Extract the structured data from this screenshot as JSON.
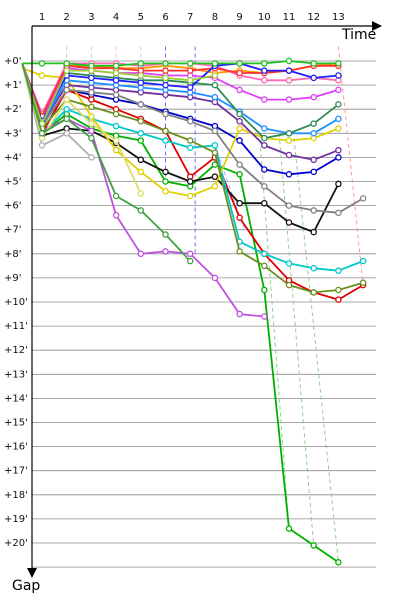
{
  "chart_data": {
    "type": "line",
    "xlabel": "Time",
    "ylabel": "Gap",
    "x_ticks": [
      "1",
      "2",
      "3",
      "4",
      "5",
      "6",
      "7",
      "8",
      "9",
      "10",
      "11",
      "12",
      "13"
    ],
    "y_ticks": [
      "+0'",
      "+1'",
      "+2'",
      "+3'",
      "+4'",
      "+5'",
      "+6'",
      "+7'",
      "+8'",
      "+9'",
      "+10'",
      "+11'",
      "+12'",
      "+13'",
      "+14'",
      "+15'",
      "+16'",
      "+17'",
      "+18'",
      "+19'",
      "+20'"
    ],
    "xlim": [
      0.2,
      14.2
    ],
    "ylim": [
      0,
      21
    ],
    "grid": true,
    "series": [
      {
        "color": "#00b000",
        "x": [
          0.2,
          1,
          2,
          3,
          4,
          5,
          6,
          7,
          8,
          9,
          10,
          11,
          12,
          13
        ],
        "y": [
          0.1,
          3.0,
          2.2,
          2.8,
          3.1,
          3.3,
          5.0,
          5.2,
          4.3,
          4.7,
          9.5,
          19.4,
          20.1,
          20.8
        ]
      },
      {
        "color": "#0000cc",
        "x": [
          0.2,
          1,
          2,
          3,
          4,
          5,
          6,
          7,
          8,
          9,
          10,
          11,
          12,
          13
        ],
        "y": [
          0.1,
          3.0,
          1.2,
          1.4,
          1.6,
          1.8,
          2.1,
          2.4,
          2.7,
          3.3,
          4.5,
          4.7,
          4.6,
          4.0
        ]
      },
      {
        "color": "#e00000",
        "x": [
          0.2,
          1,
          2,
          3,
          4,
          5,
          6,
          7,
          8,
          9,
          10,
          11,
          12,
          13,
          14
        ],
        "y": [
          0.1,
          3.0,
          1.2,
          1.6,
          2.0,
          2.4,
          2.9,
          4.8,
          4.0,
          6.5,
          8.0,
          9.1,
          9.6,
          9.9,
          9.3
        ]
      },
      {
        "color": "#111111",
        "x": [
          0.2,
          1,
          2,
          3,
          4,
          5,
          6,
          7,
          8,
          9,
          10,
          11,
          12,
          13
        ],
        "y": [
          0.1,
          3.1,
          2.8,
          2.9,
          3.4,
          4.1,
          4.6,
          5.0,
          4.8,
          5.9,
          5.9,
          6.7,
          7.1,
          5.1
        ]
      },
      {
        "color": "#00c8c8",
        "x": [
          0.2,
          1,
          2,
          3,
          4,
          5,
          6,
          7,
          8,
          9,
          10,
          11,
          12,
          13,
          14
        ],
        "y": [
          0.1,
          3.0,
          2.0,
          2.4,
          2.7,
          3.0,
          3.3,
          3.6,
          3.5,
          7.5,
          8.0,
          8.4,
          8.6,
          8.7,
          8.3
        ]
      },
      {
        "color": "#c050e0",
        "x": [
          0.2,
          1,
          2,
          3,
          4,
          5,
          6,
          7,
          8,
          9,
          10
        ],
        "y": [
          0.1,
          2.9,
          2.4,
          2.9,
          6.4,
          8.0,
          7.9,
          8.0,
          9.0,
          10.5,
          10.6
        ]
      },
      {
        "color": "#e0d000",
        "x": [
          0.2,
          1,
          2,
          3,
          4,
          5,
          6,
          7,
          8,
          9,
          10,
          11,
          12,
          13
        ],
        "y": [
          0.3,
          0.6,
          0.7,
          2.3,
          3.7,
          4.6,
          5.4,
          5.6,
          5.2,
          2.8,
          3.2,
          3.3,
          3.2,
          2.8
        ]
      },
      {
        "color": "#7030a0",
        "x": [
          0.2,
          1,
          2,
          3,
          4,
          5,
          6,
          7,
          8,
          9,
          10,
          11,
          12,
          13
        ],
        "y": [
          0.1,
          2.6,
          1.0,
          1.1,
          1.2,
          1.3,
          1.4,
          1.5,
          1.7,
          2.5,
          3.5,
          3.9,
          4.1,
          3.7
        ]
      },
      {
        "color": "#1e90ff",
        "x": [
          0.2,
          1,
          2,
          3,
          4,
          5,
          6,
          7,
          8,
          9,
          10,
          11,
          12,
          13
        ],
        "y": [
          0.1,
          2.6,
          0.8,
          0.9,
          1.0,
          1.1,
          1.2,
          1.3,
          1.5,
          2.1,
          2.8,
          3.0,
          3.0,
          2.4
        ]
      },
      {
        "color": "#2e8b57",
        "x": [
          0.2,
          1,
          2,
          3,
          4,
          5,
          6,
          7,
          8,
          9,
          10,
          11,
          12,
          13
        ],
        "y": [
          0.1,
          2.5,
          0.5,
          0.6,
          0.7,
          0.8,
          0.8,
          0.9,
          1.0,
          2.2,
          3.2,
          3.0,
          2.6,
          1.8
        ]
      },
      {
        "color": "#808080",
        "x": [
          0.2,
          1,
          2,
          3,
          4,
          5,
          6,
          7,
          8,
          9,
          10,
          11,
          12,
          13,
          14
        ],
        "y": [
          0.1,
          2.7,
          1.2,
          1.3,
          1.4,
          1.8,
          2.2,
          2.5,
          2.9,
          4.3,
          5.2,
          6.0,
          6.2,
          6.3,
          5.7
        ]
      },
      {
        "color": "#6b8e23",
        "x": [
          0.2,
          1,
          2,
          3,
          4,
          5,
          6,
          7,
          8,
          9,
          10,
          11,
          12,
          13,
          14
        ],
        "y": [
          0.1,
          2.8,
          1.6,
          1.9,
          2.2,
          2.5,
          2.9,
          3.3,
          3.8,
          7.9,
          8.5,
          9.3,
          9.6,
          9.5,
          9.2
        ]
      },
      {
        "color": "#ff9900",
        "x": [
          0.2,
          1,
          2,
          3,
          4,
          5,
          6,
          7,
          8,
          9,
          10,
          11,
          12,
          13
        ],
        "y": [
          0.1,
          2.3,
          0.2,
          0.2,
          0.3,
          0.3,
          0.2,
          0.3,
          0.5,
          0.4,
          0.5,
          0.4,
          0.2,
          0.1
        ]
      },
      {
        "color": "#ff69b4",
        "x": [
          0.2,
          1,
          2,
          3,
          4,
          5,
          6,
          7,
          8,
          9,
          10,
          11,
          12,
          13
        ],
        "y": [
          0.1,
          2.2,
          0.1,
          0.1,
          0.1,
          0.2,
          0.1,
          0.1,
          0.2,
          0.6,
          0.8,
          0.8,
          0.7,
          0.8
        ]
      },
      {
        "color": "#e040fb",
        "x": [
          0.2,
          1,
          2,
          3,
          4,
          5,
          6,
          7,
          8,
          9,
          10,
          11,
          12,
          13
        ],
        "y": [
          0.1,
          2.4,
          0.3,
          0.4,
          0.5,
          0.5,
          0.6,
          0.6,
          0.7,
          1.2,
          1.6,
          1.6,
          1.5,
          1.2
        ]
      },
      {
        "color": "#ff3030",
        "x": [
          0.2,
          1,
          2,
          3,
          4,
          5,
          6,
          7,
          8,
          9,
          10,
          11,
          12,
          13
        ],
        "y": [
          0.1,
          2.3,
          0.2,
          0.3,
          0.3,
          0.4,
          0.4,
          0.4,
          0.3,
          0.5,
          0.5,
          0.4,
          0.2,
          0.2
        ]
      },
      {
        "color": "#2020ff",
        "x": [
          0.2,
          1,
          2,
          3,
          4,
          5,
          6,
          7,
          8,
          9,
          10,
          11,
          12,
          13
        ],
        "y": [
          0.1,
          2.5,
          0.6,
          0.7,
          0.8,
          0.9,
          1.0,
          1.1,
          0.2,
          0.1,
          0.4,
          0.4,
          0.7,
          0.6
        ]
      },
      {
        "color": "#20c020",
        "x": [
          0.2,
          1,
          2,
          3,
          4,
          5,
          6,
          7,
          8,
          9,
          10,
          11,
          12,
          13
        ],
        "y": [
          0.1,
          0.1,
          0.1,
          0.2,
          0.2,
          0.1,
          0.1,
          0.1,
          0.1,
          0.1,
          0.1,
          0.0,
          0.1,
          0.1
        ]
      },
      {
        "color": "#9acd32",
        "x": [
          0.2,
          1,
          2,
          3,
          4,
          5,
          6,
          7,
          8
        ],
        "y": [
          0.1,
          2.6,
          0.4,
          0.4,
          0.5,
          0.6,
          0.7,
          0.8,
          0.6
        ]
      },
      {
        "color": "#b0b0b0",
        "x": [
          0.2,
          1,
          2,
          3
        ],
        "y": [
          0.1,
          3.5,
          3.0,
          4.0
        ]
      },
      {
        "color": "#dddd66",
        "x": [
          0.2,
          1,
          2,
          3,
          4,
          5
        ],
        "y": [
          0.1,
          3.2,
          1.6,
          2.6,
          3.3,
          5.5
        ]
      },
      {
        "color": "#40a040",
        "x": [
          0.2,
          1,
          2,
          3,
          4,
          5,
          6,
          7
        ],
        "y": [
          0.1,
          3.0,
          2.4,
          3.2,
          5.6,
          6.2,
          7.2,
          8.3
        ]
      }
    ],
    "dashed_connectors": [
      {
        "color": "#6060ff",
        "x": [
          6.0,
          6.0
        ],
        "y": [
          -0.6,
          5.2
        ]
      },
      {
        "color": "#6060ff",
        "x": [
          7.2,
          7.2
        ],
        "y": [
          -0.6,
          8.0
        ]
      },
      {
        "color": "#a0a0ff",
        "x": [
          8.0,
          9.2
        ],
        "y": [
          3.5,
          7.0
        ]
      },
      {
        "color": "#80d080",
        "x": [
          9.8,
          11.0
        ],
        "y": [
          3.0,
          19.4
        ]
      },
      {
        "color": "#80d080",
        "x": [
          10.6,
          12.0
        ],
        "y": [
          3.0,
          20.1
        ]
      },
      {
        "color": "#80d080",
        "x": [
          11.2,
          13.0
        ],
        "y": [
          3.2,
          20.8
        ]
      },
      {
        "color": "#ff9090",
        "x": [
          13.0,
          14.0
        ],
        "y": [
          -0.6,
          9.3
        ]
      },
      {
        "color": "#a0e0a0",
        "x": [
          2.0,
          2.0
        ],
        "y": [
          -0.6,
          0.2
        ]
      },
      {
        "color": "#a0e0a0",
        "x": [
          3.0,
          3.0
        ],
        "y": [
          -0.6,
          0.2
        ]
      },
      {
        "color": "#ffb0b0",
        "x": [
          4.0,
          4.0
        ],
        "y": [
          -0.6,
          0.2
        ]
      },
      {
        "color": "#b0d0ff",
        "x": [
          5.0,
          5.0
        ],
        "y": [
          -0.6,
          0.2
        ]
      }
    ]
  }
}
